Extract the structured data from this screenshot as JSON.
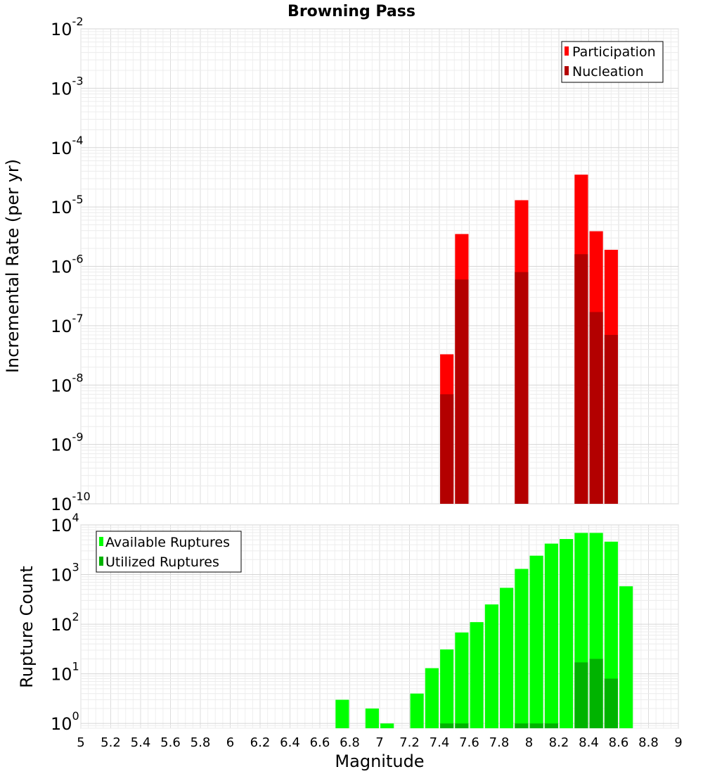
{
  "chart_data": [
    {
      "type": "bar",
      "title": "Browning Pass",
      "ylabel": "Incremental Rate (per yr)",
      "yscale": "log",
      "ylim": [
        1e-10,
        0.01
      ],
      "xlim": [
        5,
        9
      ],
      "grid": true,
      "legend_position": "top-right",
      "bar_width": 0.09,
      "colors": {
        "Participation": "#ff0000",
        "Nucleation": "#b30000"
      },
      "series": [
        {
          "name": "Participation",
          "x": [
            7.45,
            7.55,
            7.95,
            8.35,
            8.45,
            8.55
          ],
          "values": [
            3.3e-08,
            3.5e-06,
            1.3e-05,
            3.5e-05,
            3.9e-06,
            1.9e-06
          ]
        },
        {
          "name": "Nucleation",
          "x": [
            7.45,
            7.55,
            7.95,
            8.35,
            8.45,
            8.55
          ],
          "values": [
            7e-09,
            6e-07,
            8e-07,
            1.6e-06,
            1.7e-07,
            7e-08
          ]
        }
      ],
      "y_ticks": [
        {
          "base": "10",
          "exp": "-10",
          "value": 1e-10
        },
        {
          "base": "10",
          "exp": "-9",
          "value": 1e-09
        },
        {
          "base": "10",
          "exp": "-8",
          "value": 1e-08
        },
        {
          "base": "10",
          "exp": "-7",
          "value": 1e-07
        },
        {
          "base": "10",
          "exp": "-6",
          "value": 1e-06
        },
        {
          "base": "10",
          "exp": "-5",
          "value": 1e-05
        },
        {
          "base": "10",
          "exp": "-4",
          "value": 0.0001
        },
        {
          "base": "10",
          "exp": "-3",
          "value": 0.001
        },
        {
          "base": "10",
          "exp": "-2",
          "value": 0.01
        }
      ]
    },
    {
      "type": "bar",
      "xlabel": "Magnitude",
      "ylabel": "Rupture Count",
      "yscale": "log",
      "ylim": [
        0.8,
        10000
      ],
      "xlim": [
        5,
        9
      ],
      "grid": true,
      "legend_position": "top-left",
      "bar_width": 0.09,
      "colors": {
        "Available Ruptures": "#00ff00",
        "Utilized Ruptures": "#00b300"
      },
      "series": [
        {
          "name": "Available Ruptures",
          "x": [
            6.75,
            6.95,
            7.05,
            7.25,
            7.35,
            7.45,
            7.55,
            7.65,
            7.75,
            7.85,
            7.95,
            8.05,
            8.15,
            8.25,
            8.35,
            8.45,
            8.55,
            8.65
          ],
          "values": [
            3,
            2,
            1,
            4,
            13,
            31,
            68,
            110,
            250,
            540,
            1300,
            2400,
            4200,
            5200,
            6900,
            6900,
            4600,
            580
          ]
        },
        {
          "name": "Utilized Ruptures",
          "x": [
            7.45,
            7.55,
            7.95,
            8.05,
            8.15,
            8.35,
            8.45,
            8.55
          ],
          "values": [
            1,
            1,
            1,
            1,
            1,
            17,
            20,
            8
          ]
        }
      ],
      "x_tick_labels": [
        "5",
        "5.2",
        "5.4",
        "5.6",
        "5.8",
        "6",
        "6.2",
        "6.4",
        "6.6",
        "6.8",
        "7",
        "7.2",
        "7.4",
        "7.6",
        "7.8",
        "8",
        "8.2",
        "8.4",
        "8.6",
        "8.8",
        "9"
      ],
      "y_ticks": [
        {
          "base": "10",
          "exp": "0",
          "value": 1
        },
        {
          "base": "10",
          "exp": "1",
          "value": 10
        },
        {
          "base": "10",
          "exp": "2",
          "value": 100
        },
        {
          "base": "10",
          "exp": "3",
          "value": 1000
        },
        {
          "base": "10",
          "exp": "4",
          "value": 10000
        }
      ]
    }
  ]
}
